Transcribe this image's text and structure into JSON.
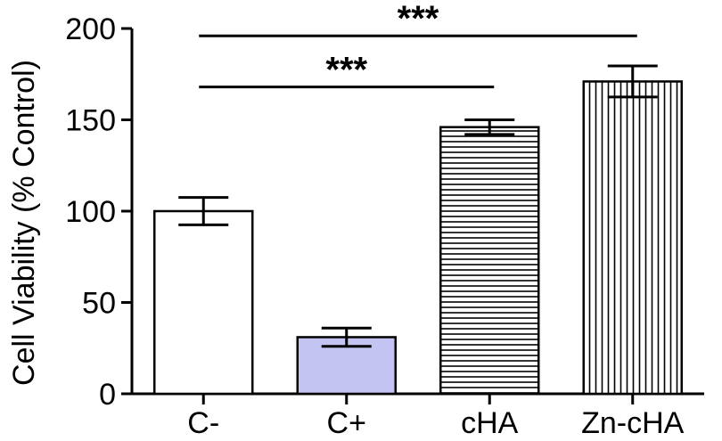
{
  "chart_data": {
    "type": "bar",
    "title": "",
    "xlabel": "",
    "ylabel": "Cell Viability (% Control)",
    "ylim": [
      0,
      200
    ],
    "yticks": [
      0,
      50,
      100,
      150,
      200
    ],
    "categories": [
      "C-",
      "C+",
      "cHA",
      "Zn-cHA"
    ],
    "values": [
      100,
      31,
      146,
      171
    ],
    "errors": [
      7.5,
      5,
      4,
      8.5
    ],
    "fills": [
      "white",
      "#c4c4f2",
      "horizontal-hatch",
      "vertical-hatch"
    ],
    "significance": [
      {
        "from": "C-",
        "to": "cHA",
        "label": "***",
        "y": 168
      },
      {
        "from": "C-",
        "to": "Zn-cHA",
        "label": "***",
        "y": 196
      }
    ],
    "grid": false,
    "legend": "none"
  }
}
